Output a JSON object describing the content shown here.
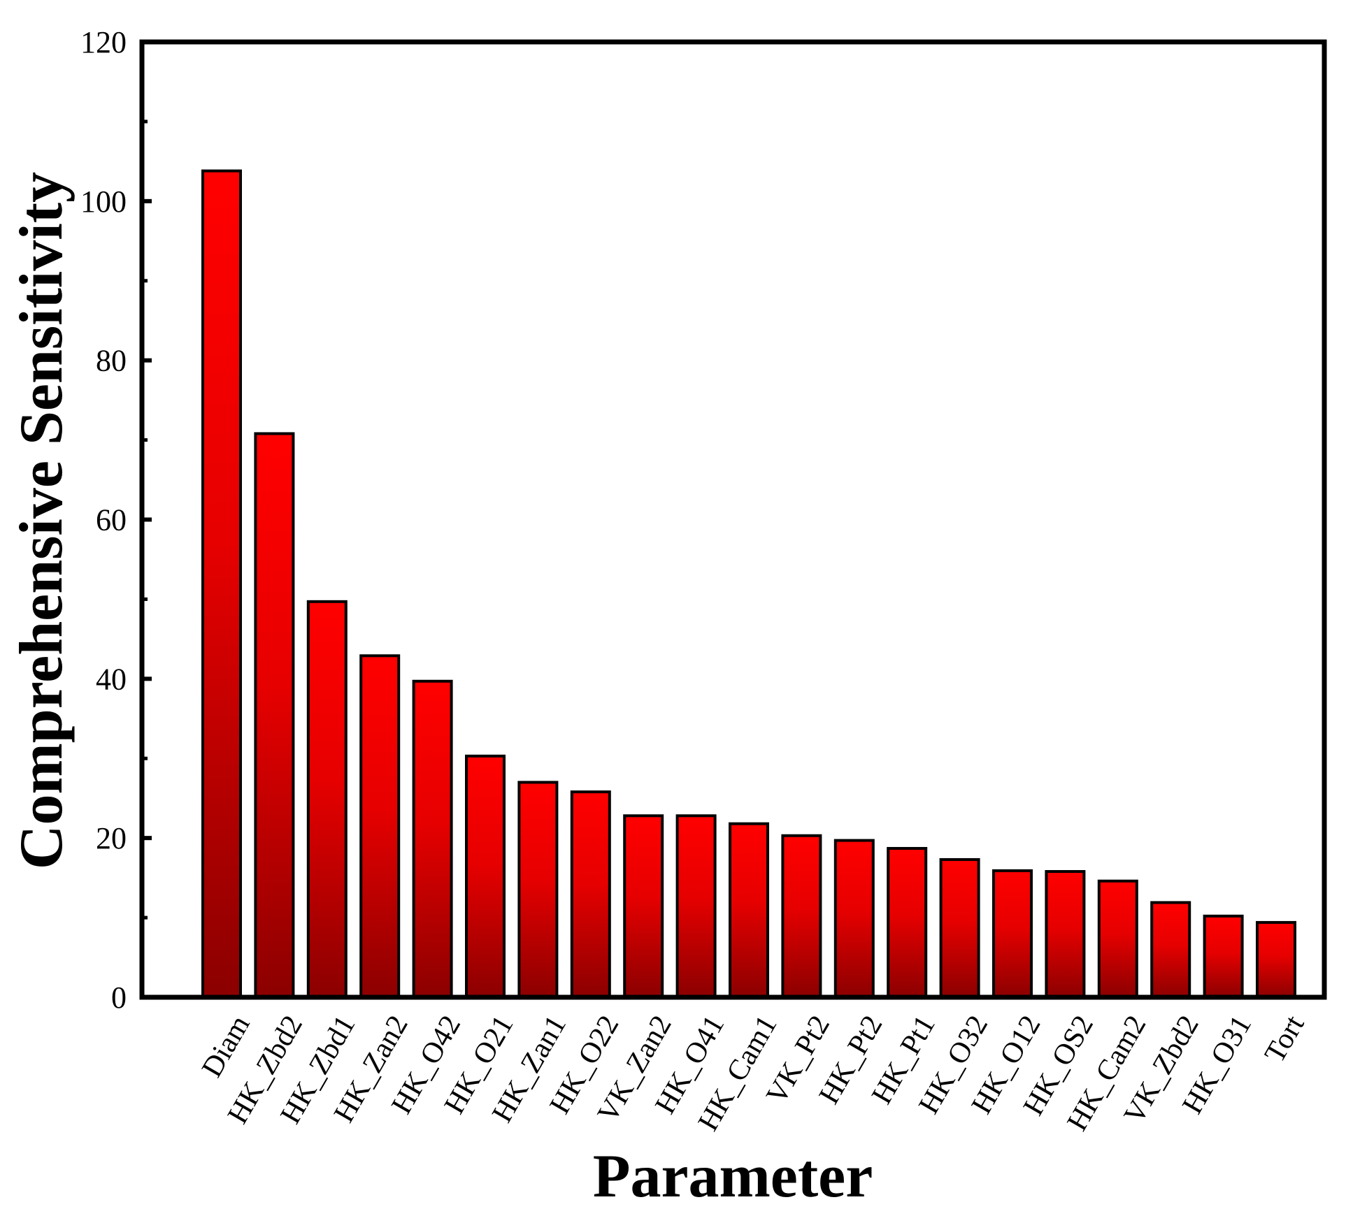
{
  "chart_data": {
    "type": "bar",
    "title": "",
    "xlabel": "Parameter",
    "ylabel": "Comprehensive Sensitivity",
    "ylim": [
      0,
      120
    ],
    "yticks": [
      0,
      20,
      40,
      60,
      80,
      100,
      120
    ],
    "yticks_minor": [
      10,
      30,
      50,
      70,
      90,
      110
    ],
    "categories": [
      "Diam",
      "HK_Zbd2",
      "HK_Zbd1",
      "HK_Zan2",
      "HK_O42",
      "HK_O21",
      "HK_Zan1",
      "HK_O22",
      "VK_Zan2",
      "HK_O41",
      "HK_Cam1",
      "VK_Pt2",
      "HK_Pt2",
      "HK_Pt1",
      "HK_O32",
      "HK_O12",
      "HK_OS2",
      "HK_Cam2",
      "VK_Zbd2",
      "HK_O31",
      "Tort"
    ],
    "values": [
      103.8,
      70.8,
      49.7,
      42.9,
      39.7,
      30.3,
      27.0,
      25.8,
      22.8,
      22.8,
      21.8,
      20.3,
      19.7,
      18.7,
      17.3,
      15.9,
      15.8,
      14.6,
      11.9,
      10.2,
      9.4
    ],
    "grid": false,
    "legend": "none",
    "colors": {
      "bar_top": "#ff0000",
      "bar_bottom": "#8b0000",
      "bar_stroke": "#000000",
      "axis": "#000000"
    }
  }
}
